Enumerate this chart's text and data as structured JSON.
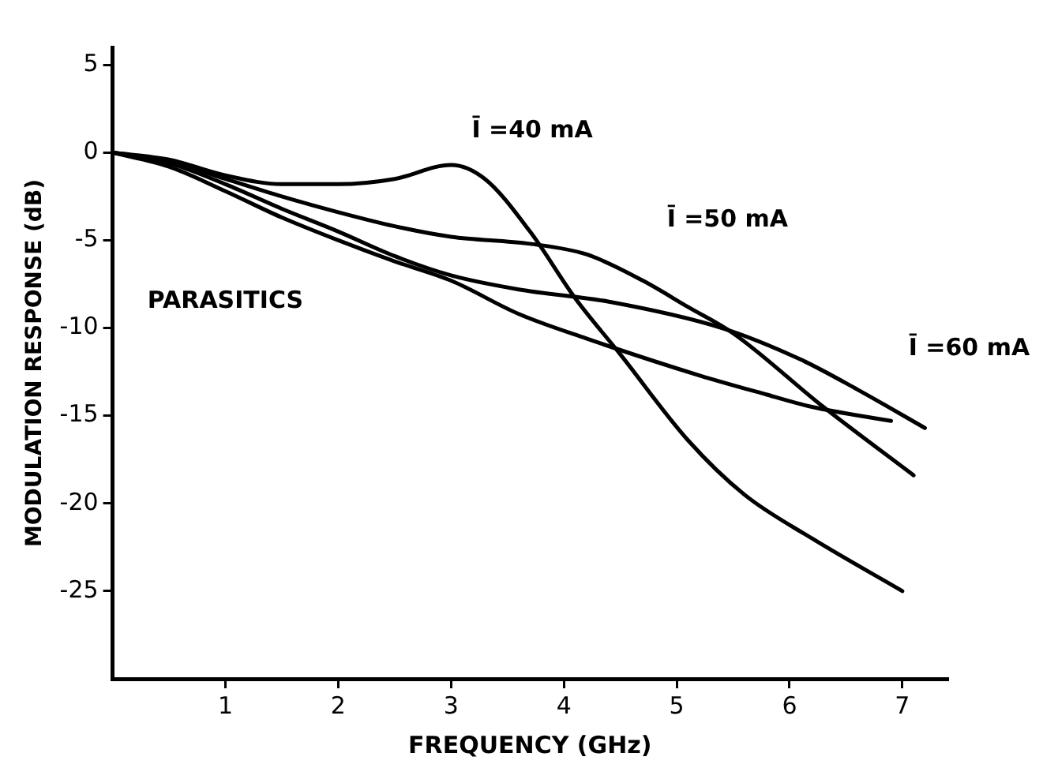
{
  "chart_data": {
    "type": "line",
    "xlabel": "FREQUENCY (GHz)",
    "ylabel": "MODULATION RESPONSE (dB)",
    "xlim": [
      0,
      7.4
    ],
    "ylim": [
      -30,
      6
    ],
    "xticks": [
      1,
      2,
      3,
      4,
      5,
      6,
      7
    ],
    "yticks": [
      5,
      0,
      -5,
      -10,
      -15,
      -20,
      -25
    ],
    "grid": false,
    "legend": false,
    "marker": "none",
    "line_style": "solid",
    "series": [
      {
        "name": "Ī =40 mA",
        "color": "#000000",
        "x": [
          0,
          0.5,
          1,
          1.5,
          2,
          2.5,
          3,
          3.3,
          3.7,
          4.1,
          4.5,
          5.1,
          5.6,
          6.2,
          7
        ],
        "values": [
          0,
          -0.4,
          -1.3,
          -1.8,
          -1.8,
          -1.5,
          -0.7,
          -1.5,
          -4.5,
          -8.3,
          -11.5,
          -16.4,
          -19.5,
          -22,
          -25
        ]
      },
      {
        "name": "Ī =50 mA",
        "color": "#000000",
        "x": [
          0,
          0.5,
          1,
          1.5,
          2,
          2.5,
          3,
          3.7,
          4.2,
          4.7,
          5.1,
          5.5,
          6.3,
          7.1
        ],
        "values": [
          0,
          -0.5,
          -1.5,
          -2.5,
          -3.4,
          -4.2,
          -4.8,
          -5.2,
          -5.8,
          -7.3,
          -8.8,
          -10.3,
          -14.5,
          -18.4
        ]
      },
      {
        "name": "Ī =60 mA",
        "color": "#000000",
        "x": [
          0,
          0.5,
          1,
          1.5,
          2,
          2.5,
          3,
          3.6,
          4.4,
          5.4,
          6.1,
          6.6,
          7.2
        ],
        "values": [
          0,
          -0.6,
          -1.8,
          -3.2,
          -4.5,
          -5.9,
          -7,
          -7.8,
          -8.5,
          -10,
          -11.8,
          -13.5,
          -15.7
        ]
      },
      {
        "name": "PARASITICS",
        "color": "#000000",
        "x": [
          0,
          0.5,
          1,
          1.5,
          2,
          2.5,
          3,
          3.6,
          4.2,
          5.2,
          5.8,
          6.2,
          6.9
        ],
        "values": [
          0,
          -0.8,
          -2.2,
          -3.7,
          -5,
          -6.2,
          -7.3,
          -9.2,
          -10.6,
          -12.7,
          -13.8,
          -14.5,
          -15.3
        ]
      }
    ]
  }
}
